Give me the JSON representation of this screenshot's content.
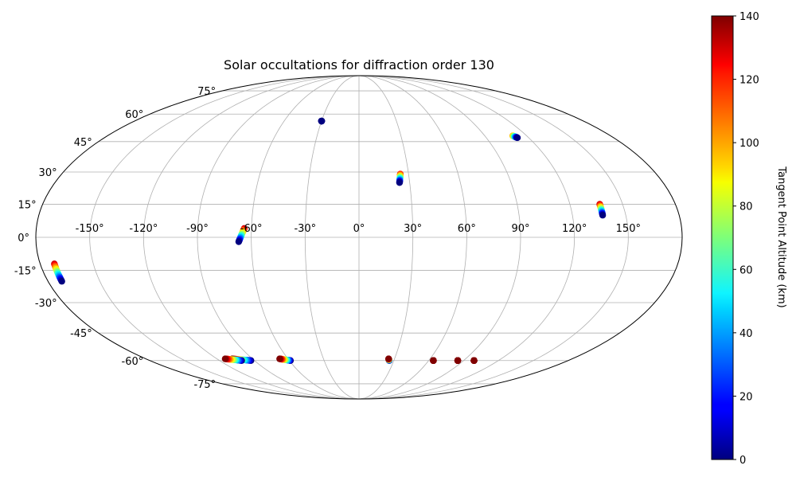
{
  "chart_data": {
    "type": "scatter",
    "projection": "mollweide",
    "title": "Solar occultations for diffraction order 130",
    "lon_ticks": [
      "-150°",
      "-120°",
      "-90°",
      "-60°",
      "-30°",
      "0°",
      "30°",
      "60°",
      "90°",
      "120°",
      "150°"
    ],
    "lon_tick_values": [
      -150,
      -120,
      -90,
      -60,
      -30,
      0,
      30,
      60,
      90,
      120,
      150
    ],
    "lat_ticks": [
      "-75°",
      "-60°",
      "-45°",
      "-30°",
      "-15°",
      "0°",
      "15°",
      "30°",
      "45°",
      "60°",
      "75°"
    ],
    "lat_tick_values": [
      -75,
      -60,
      -45,
      -30,
      -15,
      0,
      15,
      30,
      45,
      60,
      75
    ],
    "grid": true,
    "colorbar": {
      "label": "Tangent Point Altitude (km)",
      "colormap": "jet",
      "min": 0,
      "max": 140,
      "ticks": [
        "0",
        "20",
        "40",
        "60",
        "80",
        "100",
        "120",
        "140"
      ],
      "tick_values": [
        0,
        20,
        40,
        60,
        80,
        100,
        120,
        140
      ],
      "position": "right"
    },
    "tracks": [
      {
        "start": [
          -30,
          56
        ],
        "end": [
          -30,
          56
        ],
        "alt_start": 0,
        "alt_end": 2
      },
      {
        "start": [
          112,
          47
        ],
        "end": [
          110,
          48
        ],
        "alt_start": 0,
        "alt_end": 100
      },
      {
        "start": [
          24,
          25
        ],
        "end": [
          25,
          29
        ],
        "alt_start": 0,
        "alt_end": 120
      },
      {
        "start": [
          137,
          10
        ],
        "end": [
          137,
          15
        ],
        "alt_start": 0,
        "alt_end": 130
      },
      {
        "start": [
          -67,
          -2
        ],
        "end": [
          -64,
          4
        ],
        "alt_start": 0,
        "alt_end": 130
      },
      {
        "start": [
          -172,
          -20
        ],
        "end": [
          -172,
          -12
        ],
        "alt_start": 0,
        "alt_end": 130
      },
      {
        "start": [
          -107,
          -59
        ],
        "end": [
          -93,
          -60
        ],
        "alt_start": 140,
        "alt_end": 0
      },
      {
        "start": [
          -113,
          -59
        ],
        "end": [
          -101,
          -60
        ],
        "alt_start": 140,
        "alt_end": 0
      },
      {
        "start": [
          -67,
          -59
        ],
        "end": [
          -59,
          -60
        ],
        "alt_start": 140,
        "alt_end": 0
      },
      {
        "start": [
          25,
          -59
        ],
        "end": [
          26,
          -60
        ],
        "alt_start": 140,
        "alt_end": 0
      },
      {
        "start": [
          64,
          -60
        ],
        "end": [
          64,
          -60
        ],
        "alt_start": 140,
        "alt_end": 130
      },
      {
        "start": [
          85,
          -60
        ],
        "end": [
          85,
          -60
        ],
        "alt_start": 140,
        "alt_end": 130
      },
      {
        "start": [
          99,
          -60
        ],
        "end": [
          99,
          -60
        ],
        "alt_start": 140,
        "alt_end": 130
      }
    ]
  }
}
